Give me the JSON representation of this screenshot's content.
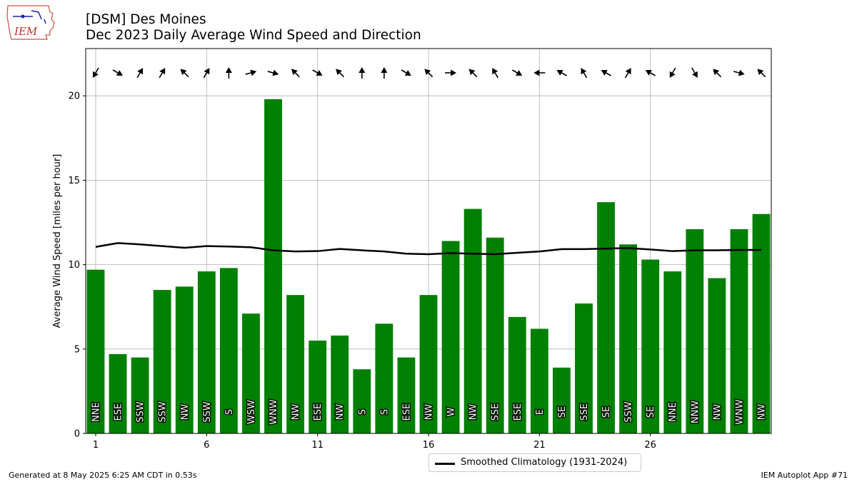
{
  "header": {
    "title_line1": "[DSM] Des Moines",
    "title_line2": "Dec 2023 Daily Average Wind Speed and Direction"
  },
  "logo": {
    "text": "IEM"
  },
  "footer": {
    "generated": "Generated at 8 May 2025 6:25 AM CDT in 0.53s",
    "app": "IEM Autoplot App #71"
  },
  "chart_data": {
    "type": "bar",
    "ylabel": "Average Wind Speed [miles per hour]",
    "xlabel": "",
    "ylim": [
      0,
      22.8
    ],
    "xlim": [
      0.55,
      31.45
    ],
    "yticks": [
      0,
      5,
      10,
      15,
      20
    ],
    "xticks": [
      1,
      6,
      11,
      16,
      21,
      26
    ],
    "grid": true,
    "bar_color": "#008000",
    "days": [
      1,
      2,
      3,
      4,
      5,
      6,
      7,
      8,
      9,
      10,
      11,
      12,
      13,
      14,
      15,
      16,
      17,
      18,
      19,
      20,
      21,
      22,
      23,
      24,
      25,
      26,
      27,
      28,
      29,
      30,
      31
    ],
    "values": [
      9.7,
      4.7,
      4.5,
      8.5,
      8.7,
      9.6,
      9.8,
      7.1,
      19.8,
      8.2,
      5.5,
      5.8,
      3.8,
      6.5,
      4.5,
      8.2,
      11.4,
      13.3,
      11.6,
      6.9,
      6.2,
      3.9,
      7.7,
      13.7,
      11.2,
      10.3,
      9.6,
      12.1,
      9.2,
      12.1,
      13.0
    ],
    "directions": [
      "NNE",
      "ESE",
      "SSW",
      "SSW",
      "NW",
      "SSW",
      "S",
      "WSW",
      "WNW",
      "NW",
      "ESE",
      "NW",
      "S",
      "S",
      "ESE",
      "NW",
      "W",
      "NW",
      "SSE",
      "ESE",
      "E",
      "SE",
      "SSE",
      "SE",
      "SSW",
      "SE",
      "NNE",
      "NNW",
      "NW",
      "WNW",
      "NW"
    ],
    "arrow_angles_deg": [
      30,
      300,
      210,
      210,
      135,
      210,
      180,
      255,
      285,
      135,
      300,
      135,
      180,
      180,
      300,
      135,
      270,
      135,
      150,
      300,
      90,
      120,
      150,
      120,
      210,
      120,
      30,
      330,
      135,
      285,
      135
    ],
    "climatology": {
      "name": "Smoothed Climatology (1931-2024)",
      "values": [
        11.05,
        11.28,
        11.2,
        11.1,
        11.0,
        11.1,
        11.07,
        11.03,
        10.85,
        10.78,
        10.8,
        10.93,
        10.85,
        10.78,
        10.65,
        10.62,
        10.68,
        10.65,
        10.62,
        10.7,
        10.78,
        10.92,
        10.92,
        10.95,
        10.98,
        10.9,
        10.8,
        10.85,
        10.85,
        10.87,
        10.87
      ]
    }
  }
}
